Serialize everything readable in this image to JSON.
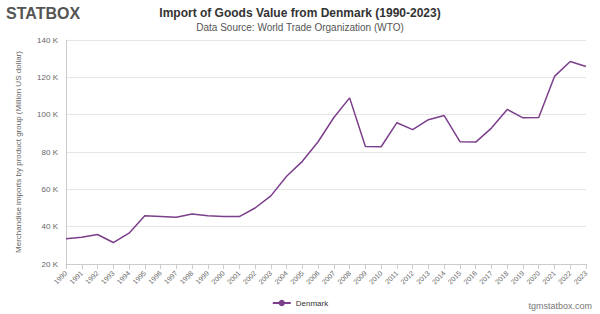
{
  "chart_data": {
    "type": "line",
    "title": "Import of Goods Value from Denmark (1990-2023)",
    "subtitle": "Data Source: World Trade Organization (WTO)",
    "y_label": "Merchandise imports by product group (Million US dollar)",
    "annotations": [
      "STATBOX",
      "tgmstatbox.com"
    ],
    "categories": [
      "1990",
      "1991",
      "1992",
      "1993",
      "1994",
      "1995",
      "1996",
      "1997",
      "1998",
      "1999",
      "2000",
      "2001",
      "2002",
      "2003",
      "2004",
      "2005",
      "2006",
      "2007",
      "2008",
      "2009",
      "2010",
      "2011",
      "2012",
      "2013",
      "2014",
      "2015",
      "2016",
      "2017",
      "2018",
      "2019",
      "2020",
      "2021",
      "2022",
      "2023"
    ],
    "series": [
      {
        "name": "Denmark",
        "color": "#7b3f8c",
        "marker": "none",
        "values": [
          33500,
          34300,
          35800,
          31500,
          36500,
          45900,
          45500,
          45000,
          46800,
          45800,
          45500,
          45400,
          50000,
          56500,
          67000,
          75000,
          85500,
          98500,
          109000,
          83000,
          82800,
          95700,
          92000,
          97300,
          99500,
          85500,
          85300,
          92800,
          102800,
          98300,
          98500,
          120500,
          128500,
          125800
        ]
      }
    ],
    "ylim": [
      20000,
      140000
    ],
    "yticks": [
      {
        "value": 20000,
        "label": "20 K"
      },
      {
        "value": 40000,
        "label": "40 K"
      },
      {
        "value": 60000,
        "label": "60 K"
      },
      {
        "value": 80000,
        "label": "80 K"
      },
      {
        "value": 100000,
        "label": "100 K"
      },
      {
        "value": 120000,
        "label": "120 K"
      },
      {
        "value": 140000,
        "label": "140 K"
      }
    ],
    "grid": true,
    "legend": "bottom"
  }
}
